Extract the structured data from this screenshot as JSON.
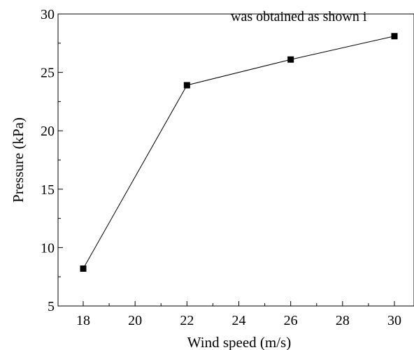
{
  "caption_fragment": "was obtained as shown i",
  "chart_data": {
    "type": "line",
    "title": "",
    "xlabel": "Wind speed (m/s)",
    "ylabel": "Pressure (kPa)",
    "xlim": [
      17,
      30.5
    ],
    "ylim": [
      5,
      30
    ],
    "xticks": [
      18,
      20,
      22,
      24,
      26,
      28,
      30
    ],
    "yticks": [
      5,
      10,
      15,
      20,
      25,
      30
    ],
    "grid": false,
    "series": [
      {
        "x": [
          18,
          22,
          26,
          30
        ],
        "values": [
          8.2,
          23.9,
          26.1,
          28.1
        ],
        "marker": "square",
        "color": "#000000"
      }
    ]
  }
}
